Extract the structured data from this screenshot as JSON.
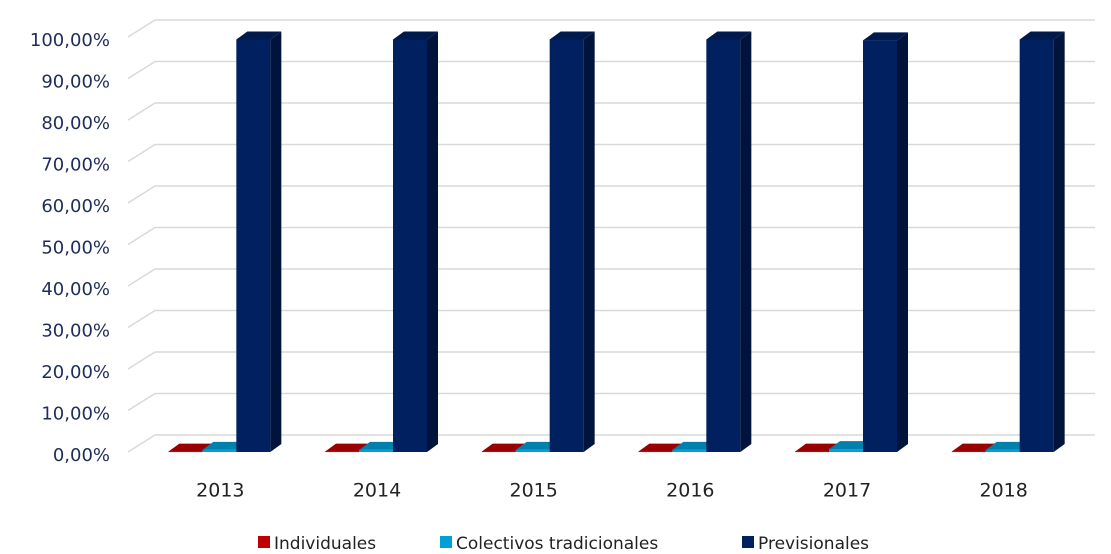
{
  "chart_data": {
    "type": "bar3d",
    "categories": [
      "2013",
      "2014",
      "2015",
      "2016",
      "2017",
      "2018"
    ],
    "series": [
      {
        "name": "Individuales",
        "color": "#c00000",
        "values": [
          0.1,
          0.1,
          0.1,
          0.1,
          0.1,
          0.1
        ]
      },
      {
        "name": "Colectivos tradicionales",
        "color": "#00a0d6",
        "values": [
          0.5,
          0.5,
          0.5,
          0.5,
          0.7,
          0.5
        ]
      },
      {
        "name": "Previsionales",
        "color": "#002060",
        "values": [
          99.4,
          99.4,
          99.4,
          99.4,
          99.2,
          99.4
        ]
      }
    ],
    "ylim": [
      0,
      100
    ],
    "yticks": [
      {
        "value": 0,
        "label": "0,00%"
      },
      {
        "value": 10,
        "label": "10,00%"
      },
      {
        "value": 20,
        "label": "20,00%"
      },
      {
        "value": 30,
        "label": "30,00%"
      },
      {
        "value": 40,
        "label": "40,00%"
      },
      {
        "value": 50,
        "label": "50,00%"
      },
      {
        "value": 60,
        "label": "60,00%"
      },
      {
        "value": 70,
        "label": "70,00%"
      },
      {
        "value": 80,
        "label": "80,00%"
      },
      {
        "value": 90,
        "label": "90,00%"
      },
      {
        "value": 100,
        "label": "100,00%"
      }
    ],
    "grid": true,
    "legend": "bottom"
  }
}
